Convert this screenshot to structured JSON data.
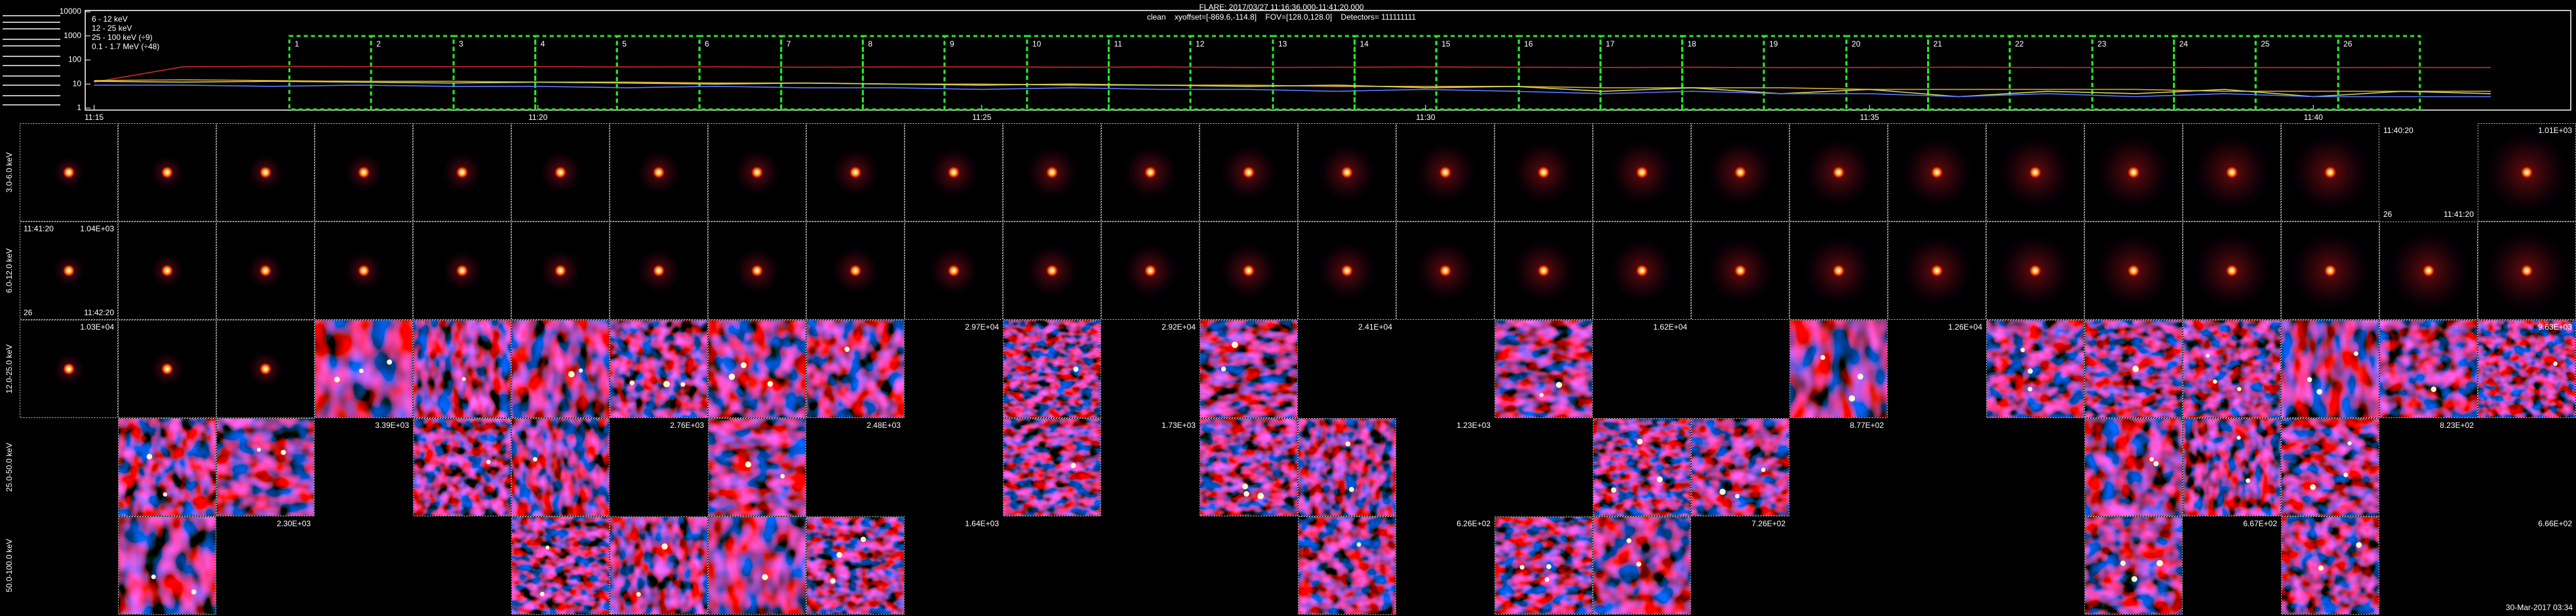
{
  "header": {
    "title": "FLARE: 2017/03/27 11:16:36.000-11:41:20.000",
    "subtitle": "clean    xyoffset=[-869.6,-114.8]    FOV=[128.0,128.0]    Detectors= 111111111"
  },
  "lightcurve": {
    "type": "line",
    "log_y": true,
    "ylim": [
      1,
      10000
    ],
    "yticks": [
      10000,
      1000,
      100,
      10,
      1
    ],
    "xlim": [
      14.9,
      42.9
    ],
    "xticks": [
      {
        "value": 15,
        "label": "11:15"
      },
      {
        "value": 20,
        "label": "11:20"
      },
      {
        "value": 25,
        "label": "11:25"
      },
      {
        "value": 30,
        "label": "11:30"
      },
      {
        "value": 35,
        "label": "11:35"
      },
      {
        "value": 40,
        "label": "11:40"
      }
    ],
    "x": [
      15,
      16,
      17,
      18,
      19,
      20,
      21,
      22,
      23,
      24,
      25,
      26,
      27,
      28,
      29,
      30,
      31,
      32,
      33,
      34,
      35,
      36,
      37,
      38,
      39,
      40,
      41,
      42
    ],
    "series": [
      {
        "name": "6 - 12 keV",
        "color": "#d02828",
        "values": [
          12,
          52,
          54,
          53,
          52,
          53,
          51,
          52,
          50,
          51,
          52,
          50,
          51,
          49,
          50,
          51,
          50,
          49,
          50,
          48,
          49,
          50,
          49,
          48,
          49,
          48,
          49,
          48
        ]
      },
      {
        "name": "12 - 25 keV",
        "color": "#e0a030",
        "values": [
          14,
          15,
          14,
          13,
          13,
          12,
          12,
          11,
          11,
          10,
          10,
          9,
          9,
          9,
          8,
          8,
          8,
          7,
          7,
          7,
          6,
          6,
          6,
          6,
          5,
          5,
          5,
          5
        ]
      },
      {
        "name": "25 - 100 keV (÷9)",
        "color": "#c8d860",
        "values": [
          13,
          12,
          13,
          12,
          11,
          12,
          11,
          10,
          11,
          10,
          9,
          10,
          9,
          8,
          9,
          7,
          8,
          5,
          7,
          4,
          6,
          3,
          5,
          4,
          6,
          3,
          5,
          4
        ]
      },
      {
        "name": "0.1 - 1.7 MeV (÷48)",
        "color": "#5a78ff",
        "values": [
          9,
          9,
          8,
          9,
          8,
          8,
          7,
          8,
          7,
          7,
          6,
          7,
          6,
          6,
          5,
          6,
          5,
          4,
          5,
          4,
          4,
          3,
          4,
          3,
          4,
          3,
          3,
          3
        ]
      }
    ],
    "intervals": {
      "color": "#22ee22",
      "labels": [
        "1",
        "2",
        "3",
        "4",
        "5",
        "6",
        "7",
        "8",
        "9",
        "10",
        "11",
        "12",
        "13",
        "14",
        "15",
        "16",
        "17",
        "18",
        "19",
        "20",
        "21",
        "22",
        "23",
        "24",
        "25",
        "26"
      ],
      "edges": [
        17.2,
        18.12,
        19.05,
        19.97,
        20.89,
        21.82,
        22.74,
        23.66,
        24.58,
        25.51,
        26.43,
        27.35,
        28.28,
        29.2,
        30.12,
        31.05,
        31.97,
        32.89,
        33.81,
        34.74,
        35.66,
        36.58,
        37.51,
        38.43,
        39.35,
        40.28,
        41.2
      ]
    }
  },
  "grid": {
    "rows": [
      {
        "label": "3.0-6.0 keV",
        "cells": [
          {
            "image": true
          },
          {
            "image": true
          },
          {
            "image": true
          },
          {
            "image": true
          },
          {
            "image": true
          },
          {
            "image": true
          },
          {
            "image": true
          },
          {
            "image": true
          },
          {
            "image": true
          },
          {
            "image": true
          },
          {
            "image": true
          },
          {
            "image": true
          },
          {
            "image": true
          },
          {
            "image": true
          },
          {
            "image": true
          },
          {
            "image": true
          },
          {
            "image": true
          },
          {
            "image": true
          },
          {
            "image": true
          },
          {
            "image": true
          },
          {
            "image": true
          },
          {
            "image": true
          },
          {
            "image": true
          },
          {
            "image": true
          },
          {
            "image": false,
            "texts": [
              {
                "text": "11:40:20",
                "pos": "top-left",
                "color": "#ffffff"
              },
              {
                "text": "26",
                "pos": "bottom-left",
                "color": "#22dd22"
              },
              {
                "text": "11:41:20",
                "pos": "bottom-right",
                "color": "#ffffff"
              }
            ]
          },
          {
            "image": true,
            "texts": [
              {
                "text": "1.01E+03",
                "pos": "top-right",
                "color": "#22dd22"
              }
            ]
          }
        ]
      },
      {
        "label": "6.0-12.0 keV",
        "cells": [
          {
            "image": true,
            "texts": [
              {
                "text": "1.04E+03",
                "pos": "top-right",
                "color": "#22dd22"
              },
              {
                "text": "11:41:20",
                "pos": "top-left",
                "color": "#ffffff"
              },
              {
                "text": "26",
                "pos": "bottom-left",
                "color": "#22dd22"
              },
              {
                "text": "11:42:20",
                "pos": "bottom-right",
                "color": "#ffffff"
              }
            ]
          },
          {
            "image": true
          },
          {
            "image": true
          },
          {
            "image": true
          },
          {
            "image": true
          },
          {
            "image": true
          },
          {
            "image": true
          },
          {
            "image": true
          },
          {
            "image": true
          },
          {
            "image": true
          },
          {
            "image": true
          },
          {
            "image": true
          },
          {
            "image": true
          },
          {
            "image": true
          },
          {
            "image": true
          },
          {
            "image": true
          },
          {
            "image": true
          },
          {
            "image": true
          },
          {
            "image": true
          },
          {
            "image": true
          },
          {
            "image": true
          },
          {
            "image": true
          },
          {
            "image": true
          },
          {
            "image": true
          },
          {
            "image": true
          },
          {
            "image": true
          }
        ]
      },
      {
        "label": "12.0-25.0 keV",
        "cells": [
          {
            "image": true,
            "texts": [
              {
                "text": "1.03E+04",
                "pos": "top-right",
                "color": "#22dd22"
              }
            ]
          },
          {
            "image": true
          },
          {
            "image": true
          },
          {
            "image": true,
            "noisy": true
          },
          {
            "image": true,
            "noisy": true
          },
          {
            "image": true,
            "noisy": true
          },
          {
            "image": true,
            "noisy": true
          },
          {
            "image": true,
            "noisy": true
          },
          {
            "image": true,
            "noisy": true
          },
          {
            "image": false,
            "texts": [
              {
                "text": "2.97E+04",
                "pos": "top-right",
                "color": "#22dd22"
              }
            ]
          },
          {
            "image": true,
            "noisy": true
          },
          {
            "image": false,
            "texts": [
              {
                "text": "2.92E+04",
                "pos": "top-right",
                "color": "#22dd22"
              }
            ]
          },
          {
            "image": true,
            "noisy": true
          },
          {
            "image": false,
            "texts": [
              {
                "text": "2.41E+04",
                "pos": "top-right",
                "color": "#22dd22"
              }
            ]
          },
          {
            "image": false
          },
          {
            "image": true,
            "noisy": true
          },
          {
            "image": false,
            "texts": [
              {
                "text": "1.62E+04",
                "pos": "top-right",
                "color": "#22dd22"
              }
            ]
          },
          {
            "image": false
          },
          {
            "image": true,
            "noisy": true
          },
          {
            "image": false,
            "texts": [
              {
                "text": "1.26E+04",
                "pos": "top-right",
                "color": "#22dd22"
              }
            ]
          },
          {
            "image": true,
            "noisy": true
          },
          {
            "image": true,
            "noisy": true
          },
          {
            "image": true,
            "noisy": true
          },
          {
            "image": true,
            "noisy": true
          },
          {
            "image": true,
            "noisy": true
          },
          {
            "image": true,
            "noisy": true,
            "texts": [
              {
                "text": "9.63E+03",
                "pos": "top-right",
                "color": "#22dd22"
              }
            ]
          }
        ]
      },
      {
        "label": "25.0-50.0 keV",
        "cells": [
          {
            "image": false
          },
          {
            "image": true,
            "noisy": true
          },
          {
            "image": true,
            "noisy": true
          },
          {
            "image": false,
            "texts": [
              {
                "text": "3.39E+03",
                "pos": "top-right",
                "color": "#22dd22"
              }
            ]
          },
          {
            "image": true,
            "noisy": true
          },
          {
            "image": true,
            "noisy": true
          },
          {
            "image": false,
            "texts": [
              {
                "text": "2.76E+03",
                "pos": "top-right",
                "color": "#22dd22"
              }
            ]
          },
          {
            "image": true,
            "noisy": true
          },
          {
            "image": false,
            "texts": [
              {
                "text": "2.48E+03",
                "pos": "top-right",
                "color": "#22dd22"
              }
            ]
          },
          {
            "image": false
          },
          {
            "image": true,
            "noisy": true
          },
          {
            "image": false,
            "texts": [
              {
                "text": "1.73E+03",
                "pos": "top-right",
                "color": "#22dd22"
              }
            ]
          },
          {
            "image": true,
            "noisy": true
          },
          {
            "image": true,
            "noisy": true
          },
          {
            "image": false,
            "texts": [
              {
                "text": "1.23E+03",
                "pos": "top-right",
                "color": "#22dd22"
              }
            ]
          },
          {
            "image": false
          },
          {
            "image": true,
            "noisy": true
          },
          {
            "image": true,
            "noisy": true
          },
          {
            "image": false,
            "texts": [
              {
                "text": "8.77E+02",
                "pos": "top-right",
                "color": "#22dd22"
              }
            ]
          },
          {
            "image": false
          },
          {
            "image": false
          },
          {
            "image": true,
            "noisy": true
          },
          {
            "image": true,
            "noisy": true
          },
          {
            "image": true,
            "noisy": true
          },
          {
            "image": false,
            "texts": [
              {
                "text": "8.23E+02",
                "pos": "top-right",
                "color": "#22dd22"
              }
            ]
          },
          {
            "image": false
          }
        ]
      },
      {
        "label": "50.0-100.0 keV",
        "cells": [
          {
            "image": false
          },
          {
            "image": true,
            "noisy": true
          },
          {
            "image": false,
            "texts": [
              {
                "text": "2.30E+03",
                "pos": "top-right",
                "color": "#22dd22"
              }
            ]
          },
          {
            "image": false
          },
          {
            "image": false
          },
          {
            "image": true,
            "noisy": true
          },
          {
            "image": true,
            "noisy": true
          },
          {
            "image": true,
            "noisy": true
          },
          {
            "image": true,
            "noisy": true
          },
          {
            "image": false,
            "texts": [
              {
                "text": "1.64E+03",
                "pos": "top-right",
                "color": "#22dd22"
              }
            ]
          },
          {
            "image": false
          },
          {
            "image": false
          },
          {
            "image": false
          },
          {
            "image": true,
            "noisy": true
          },
          {
            "image": false,
            "texts": [
              {
                "text": "6.26E+02",
                "pos": "top-right",
                "color": "#22dd22"
              }
            ]
          },
          {
            "image": true,
            "noisy": true
          },
          {
            "image": true,
            "noisy": true
          },
          {
            "image": false,
            "texts": [
              {
                "text": "7.26E+02",
                "pos": "top-right",
                "color": "#22dd22"
              }
            ]
          },
          {
            "image": false
          },
          {
            "image": false
          },
          {
            "image": false
          },
          {
            "image": true,
            "noisy": true
          },
          {
            "image": false,
            "texts": [
              {
                "text": "6.67E+02",
                "pos": "top-right",
                "color": "#22dd22"
              }
            ]
          },
          {
            "image": true,
            "noisy": true
          },
          {
            "image": false
          },
          {
            "image": false,
            "texts": [
              {
                "text": "6.66E+02",
                "pos": "top-right",
                "color": "#22dd22"
              }
            ]
          }
        ]
      }
    ],
    "footer": "30-Mar-2017 03:34"
  }
}
